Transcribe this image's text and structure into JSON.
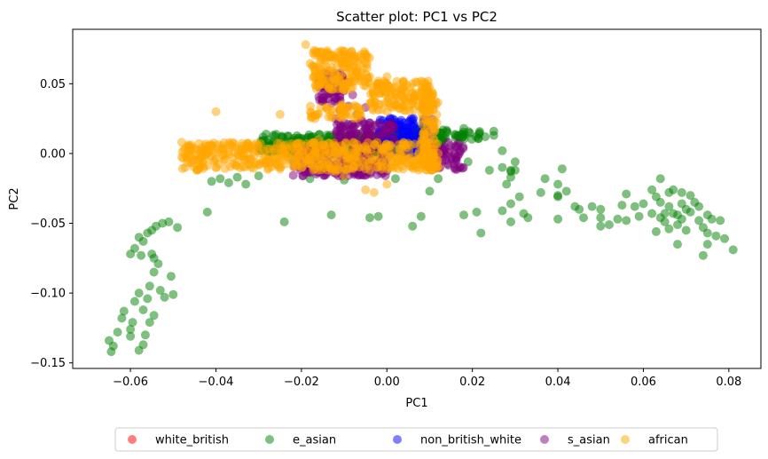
{
  "chart_data": {
    "type": "scatter",
    "title": "Scatter plot: PC1 vs PC2",
    "xlabel": "PC1",
    "ylabel": "PC2",
    "xlim": [
      -0.0735,
      0.0875
    ],
    "ylim": [
      -0.154,
      0.089
    ],
    "xticks": [
      -0.06,
      -0.04,
      -0.02,
      0.0,
      0.02,
      0.04,
      0.06,
      0.08
    ],
    "xtick_labels": [
      "−0.06",
      "−0.04",
      "−0.02",
      "0.00",
      "0.02",
      "0.04",
      "0.06",
      "0.08"
    ],
    "yticks": [
      -0.15,
      -0.1,
      -0.05,
      0.0,
      0.05
    ],
    "ytick_labels": [
      "−0.15",
      "−0.10",
      "−0.05",
      "0.00",
      "0.05"
    ],
    "grid": false,
    "legend_position": "bottom-center, outside plot, single row",
    "marker_alpha": 0.5,
    "series": [
      {
        "name": "white_british",
        "color": "#ff0000",
        "points": [
          [
            0.004,
            0.001
          ],
          [
            0.006,
            0.002
          ],
          [
            0.008,
            0.0
          ],
          [
            0.005,
            -0.001
          ],
          [
            0.009,
            0.001
          ]
        ]
      },
      {
        "name": "e_asian",
        "color": "#008000",
        "points": [
          [
            -0.065,
            -0.134
          ],
          [
            -0.064,
            -0.138
          ],
          [
            -0.0645,
            -0.142
          ],
          [
            -0.063,
            -0.128
          ],
          [
            -0.062,
            -0.118
          ],
          [
            -0.0615,
            -0.113
          ],
          [
            -0.06,
            -0.126
          ],
          [
            -0.0595,
            -0.121
          ],
          [
            -0.06,
            -0.131
          ],
          [
            -0.059,
            -0.106
          ],
          [
            -0.058,
            -0.1
          ],
          [
            -0.057,
            -0.112
          ],
          [
            -0.0555,
            -0.095
          ],
          [
            -0.0545,
            -0.085
          ],
          [
            -0.056,
            -0.104
          ],
          [
            -0.053,
            -0.098
          ],
          [
            -0.052,
            -0.103
          ],
          [
            -0.0505,
            -0.088
          ],
          [
            -0.05,
            -0.101
          ],
          [
            -0.0545,
            -0.075
          ],
          [
            -0.0535,
            -0.079
          ],
          [
            -0.0575,
            -0.073
          ],
          [
            -0.055,
            -0.072
          ],
          [
            -0.06,
            -0.072
          ],
          [
            -0.059,
            -0.068
          ],
          [
            -0.058,
            -0.06
          ],
          [
            -0.057,
            -0.063
          ],
          [
            -0.056,
            -0.057
          ],
          [
            -0.055,
            -0.055
          ],
          [
            -0.054,
            -0.052
          ],
          [
            -0.0525,
            -0.05
          ],
          [
            -0.051,
            -0.049
          ],
          [
            -0.049,
            -0.053
          ],
          [
            -0.057,
            -0.137
          ],
          [
            -0.058,
            -0.141
          ],
          [
            -0.0565,
            -0.13
          ],
          [
            -0.0555,
            -0.121
          ],
          [
            -0.0545,
            -0.116
          ],
          [
            -0.042,
            -0.042
          ],
          [
            -0.041,
            -0.02
          ],
          [
            -0.039,
            -0.018
          ],
          [
            -0.037,
            -0.021
          ],
          [
            -0.035,
            -0.017
          ],
          [
            -0.033,
            -0.022
          ],
          [
            -0.03,
            -0.016
          ],
          [
            -0.024,
            -0.049
          ],
          [
            -0.022,
            -0.005
          ],
          [
            -0.02,
            0.005
          ],
          [
            -0.018,
            -0.018
          ],
          [
            -0.016,
            0.004
          ],
          [
            -0.013,
            -0.044
          ],
          [
            -0.01,
            -0.019
          ],
          [
            -0.004,
            -0.046
          ],
          [
            -0.002,
            -0.045
          ],
          [
            0.002,
            -0.018
          ],
          [
            0.006,
            -0.052
          ],
          [
            0.008,
            -0.045
          ],
          [
            0.01,
            -0.027
          ],
          [
            0.012,
            -0.018
          ],
          [
            0.014,
            0.015
          ],
          [
            0.016,
            0.013
          ],
          [
            0.017,
            0.008
          ],
          [
            0.018,
            0.018
          ],
          [
            0.019,
            -0.006
          ],
          [
            0.018,
            -0.044
          ],
          [
            0.021,
            -0.042
          ],
          [
            0.022,
            -0.057
          ],
          [
            0.024,
            -0.012
          ],
          [
            0.025,
            0.016
          ],
          [
            0.025,
            0.013
          ],
          [
            0.027,
            0.002
          ],
          [
            0.027,
            -0.01
          ],
          [
            0.023,
            0.012
          ],
          [
            0.027,
            -0.041
          ],
          [
            0.029,
            -0.049
          ],
          [
            0.029,
            -0.017
          ],
          [
            0.028,
            -0.022
          ],
          [
            0.029,
            -0.013
          ],
          [
            0.029,
            -0.012
          ],
          [
            0.03,
            -0.012
          ],
          [
            0.03,
            -0.006
          ],
          [
            0.029,
            -0.036
          ],
          [
            0.032,
            -0.043
          ],
          [
            0.033,
            -0.046
          ],
          [
            0.031,
            -0.031
          ],
          [
            0.036,
            -0.028
          ],
          [
            0.037,
            -0.018
          ],
          [
            0.041,
            -0.011
          ],
          [
            0.04,
            -0.022
          ],
          [
            0.042,
            -0.027
          ],
          [
            0.04,
            -0.031
          ],
          [
            0.04,
            -0.047
          ],
          [
            0.04,
            -0.03
          ],
          [
            0.044,
            -0.038
          ],
          [
            0.045,
            -0.04
          ],
          [
            0.046,
            -0.046
          ],
          [
            0.048,
            -0.038
          ],
          [
            0.05,
            -0.04
          ],
          [
            0.05,
            -0.046
          ],
          [
            0.05,
            -0.052
          ],
          [
            0.052,
            -0.051
          ],
          [
            0.054,
            -0.047
          ],
          [
            0.055,
            -0.037
          ],
          [
            0.056,
            -0.029
          ],
          [
            0.056,
            -0.048
          ],
          [
            0.058,
            -0.038
          ],
          [
            0.059,
            -0.045
          ],
          [
            0.06,
            -0.036
          ],
          [
            0.062,
            -0.043
          ],
          [
            0.062,
            -0.026
          ],
          [
            0.063,
            -0.031
          ],
          [
            0.064,
            -0.018
          ],
          [
            0.064,
            -0.035
          ],
          [
            0.065,
            -0.043
          ],
          [
            0.065,
            -0.049
          ],
          [
            0.066,
            -0.028
          ],
          [
            0.066,
            -0.038
          ],
          [
            0.067,
            -0.043
          ],
          [
            0.067,
            -0.026
          ],
          [
            0.068,
            -0.044
          ],
          [
            0.068,
            -0.051
          ],
          [
            0.069,
            -0.036
          ],
          [
            0.069,
            -0.047
          ],
          [
            0.07,
            -0.04
          ],
          [
            0.07,
            -0.055
          ],
          [
            0.071,
            -0.03
          ],
          [
            0.071,
            -0.042
          ],
          [
            0.072,
            -0.035
          ],
          [
            0.073,
            -0.048
          ],
          [
            0.073,
            -0.038
          ],
          [
            0.074,
            -0.053
          ],
          [
            0.075,
            -0.044
          ],
          [
            0.075,
            -0.057
          ],
          [
            0.077,
            -0.059
          ],
          [
            0.075,
            -0.065
          ],
          [
            0.074,
            -0.073
          ],
          [
            0.076,
            -0.047
          ],
          [
            0.078,
            -0.048
          ],
          [
            0.079,
            -0.061
          ],
          [
            0.081,
            -0.069
          ],
          [
            0.068,
            -0.065
          ],
          [
            0.063,
            -0.056
          ],
          [
            0.064,
            -0.046
          ],
          [
            0.066,
            -0.054
          ],
          [
            0.069,
            -0.028
          ]
        ],
        "dense_regions": [
          [
            -0.03,
            0.01,
            0.0,
            0.014
          ],
          [
            -0.03,
            0.0,
            0.0,
            0.01
          ],
          [
            0.0,
            0.014,
            0.005,
            0.02
          ],
          [
            0.012,
            0.022,
            0.01,
            0.016
          ]
        ]
      },
      {
        "name": "non_british_white",
        "color": "#0000ff",
        "points": [
          [
            0.0,
            0.012
          ],
          [
            0.002,
            0.018
          ],
          [
            0.004,
            0.022
          ],
          [
            0.006,
            0.024
          ],
          [
            0.003,
            0.01
          ]
        ],
        "dense_regions": [
          [
            -0.002,
            0.011,
            0.0,
            0.026
          ]
        ]
      },
      {
        "name": "s_asian",
        "color": "#800080",
        "points": [
          [
            -0.016,
            0.052
          ],
          [
            -0.015,
            0.048
          ],
          [
            -0.014,
            0.042
          ],
          [
            -0.013,
            0.05
          ],
          [
            -0.012,
            0.045
          ],
          [
            -0.011,
            0.053
          ],
          [
            -0.011,
            0.04
          ],
          [
            -0.01,
            0.047
          ],
          [
            -0.009,
            0.051
          ],
          [
            -0.008,
            0.042
          ],
          [
            -0.013,
            0.036
          ],
          [
            -0.011,
            0.031
          ],
          [
            -0.009,
            0.034
          ],
          [
            -0.007,
            0.028
          ],
          [
            -0.005,
            0.033
          ],
          [
            -0.012,
            0.025
          ],
          [
            -0.01,
            0.022
          ],
          [
            -0.008,
            0.021
          ],
          [
            -0.006,
            0.024
          ],
          [
            -0.005,
            0.018
          ]
        ],
        "dense_regions": [
          [
            -0.016,
            -0.01,
            0.037,
            0.058
          ],
          [
            -0.022,
            0.0,
            -0.016,
            0.005
          ],
          [
            -0.012,
            0.002,
            0.005,
            0.023
          ],
          [
            0.01,
            0.018,
            -0.012,
            0.008
          ]
        ]
      },
      {
        "name": "african",
        "color": "#ffa500",
        "points": [
          [
            -0.019,
            0.078
          ],
          [
            -0.017,
            0.074
          ],
          [
            -0.014,
            0.07
          ],
          [
            -0.012,
            0.068
          ],
          [
            -0.01,
            0.065
          ],
          [
            -0.008,
            0.062
          ],
          [
            -0.006,
            0.058
          ],
          [
            -0.004,
            0.055
          ],
          [
            -0.002,
            0.052
          ],
          [
            0.0,
            0.05
          ],
          [
            0.002,
            0.048
          ],
          [
            0.004,
            0.045
          ],
          [
            0.006,
            0.043
          ],
          [
            0.008,
            0.04
          ],
          [
            0.01,
            0.038
          ],
          [
            -0.04,
            0.03
          ],
          [
            -0.025,
            0.028
          ],
          [
            -0.016,
            0.01
          ],
          [
            0.0,
            0.055
          ],
          [
            0.006,
            0.05
          ],
          [
            -0.048,
            0.008
          ],
          [
            -0.046,
            -0.002
          ],
          [
            -0.044,
            -0.005
          ],
          [
            -0.042,
            0.0
          ],
          [
            -0.04,
            -0.004
          ],
          [
            -0.005,
            -0.026
          ],
          [
            -0.003,
            -0.028
          ],
          [
            0.0,
            -0.022
          ],
          [
            -0.01,
            -0.016
          ],
          [
            -0.012,
            -0.013
          ],
          [
            0.01,
            0.03
          ],
          [
            0.011,
            0.02
          ],
          [
            0.011,
            0.01
          ],
          [
            0.012,
            0.0
          ],
          [
            0.012,
            -0.01
          ]
        ],
        "dense_regions": [
          [
            -0.048,
            0.012,
            -0.012,
            0.008
          ],
          [
            -0.018,
            -0.004,
            0.045,
            0.074
          ],
          [
            -0.004,
            0.011,
            0.03,
            0.052
          ],
          [
            0.008,
            0.012,
            -0.012,
            0.04
          ],
          [
            -0.018,
            -0.006,
            0.025,
            0.035
          ]
        ]
      }
    ]
  },
  "legend": {
    "entries": [
      "white_british",
      "e_asian",
      "non_british_white",
      "s_asian",
      "african"
    ]
  }
}
